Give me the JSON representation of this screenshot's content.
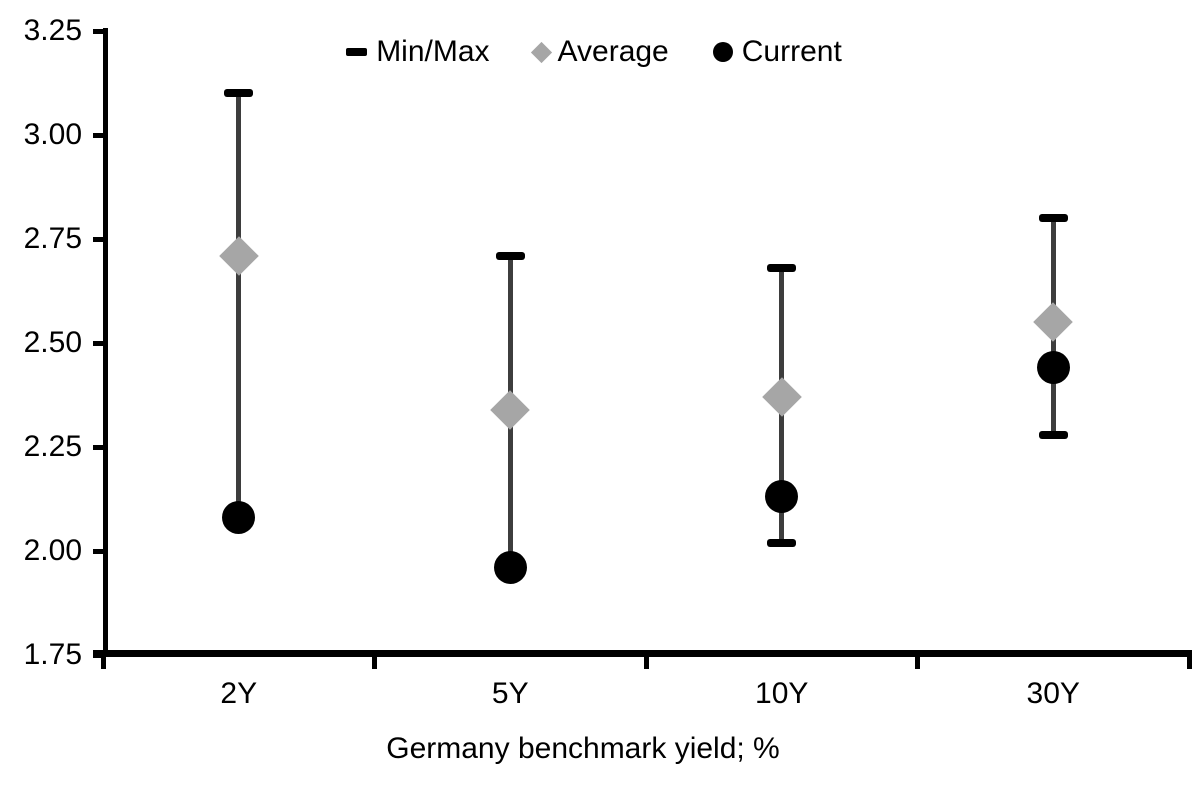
{
  "chart_data": {
    "type": "scatter",
    "subtype": "min-max-range-with-points",
    "categories": [
      "2Y",
      "5Y",
      "10Y",
      "30Y"
    ],
    "series": [
      {
        "name": "Min/Max",
        "role": "range",
        "marker": "dash",
        "min": [
          2.08,
          1.96,
          2.02,
          2.28
        ],
        "max": [
          3.1,
          2.71,
          2.68,
          2.8
        ],
        "note": "2Y and 5Y min caps coincide with Current dots and are hidden behind them"
      },
      {
        "name": "Average",
        "role": "point",
        "marker": "diamond",
        "values": [
          2.71,
          2.34,
          2.37,
          2.55
        ]
      },
      {
        "name": "Current",
        "role": "point",
        "marker": "circle",
        "values": [
          2.08,
          1.96,
          2.13,
          2.44
        ]
      }
    ],
    "title": "",
    "xlabel": "Germany benchmark yield; %",
    "ylabel": "",
    "ylim": [
      1.75,
      3.25
    ],
    "ytick_step": 0.25,
    "ytick_labels": [
      "3.25",
      "3.00",
      "2.75",
      "2.50",
      "2.25",
      "2.00",
      "1.75"
    ],
    "grid": false,
    "legend_position": "top-center",
    "colors": {
      "average_marker": "#a6a6a6",
      "current_marker": "#000000",
      "range_line": "#3d3d3d",
      "range_cap": "#000000",
      "axis": "#000000",
      "text": "#000000",
      "background": "#ffffff"
    }
  }
}
